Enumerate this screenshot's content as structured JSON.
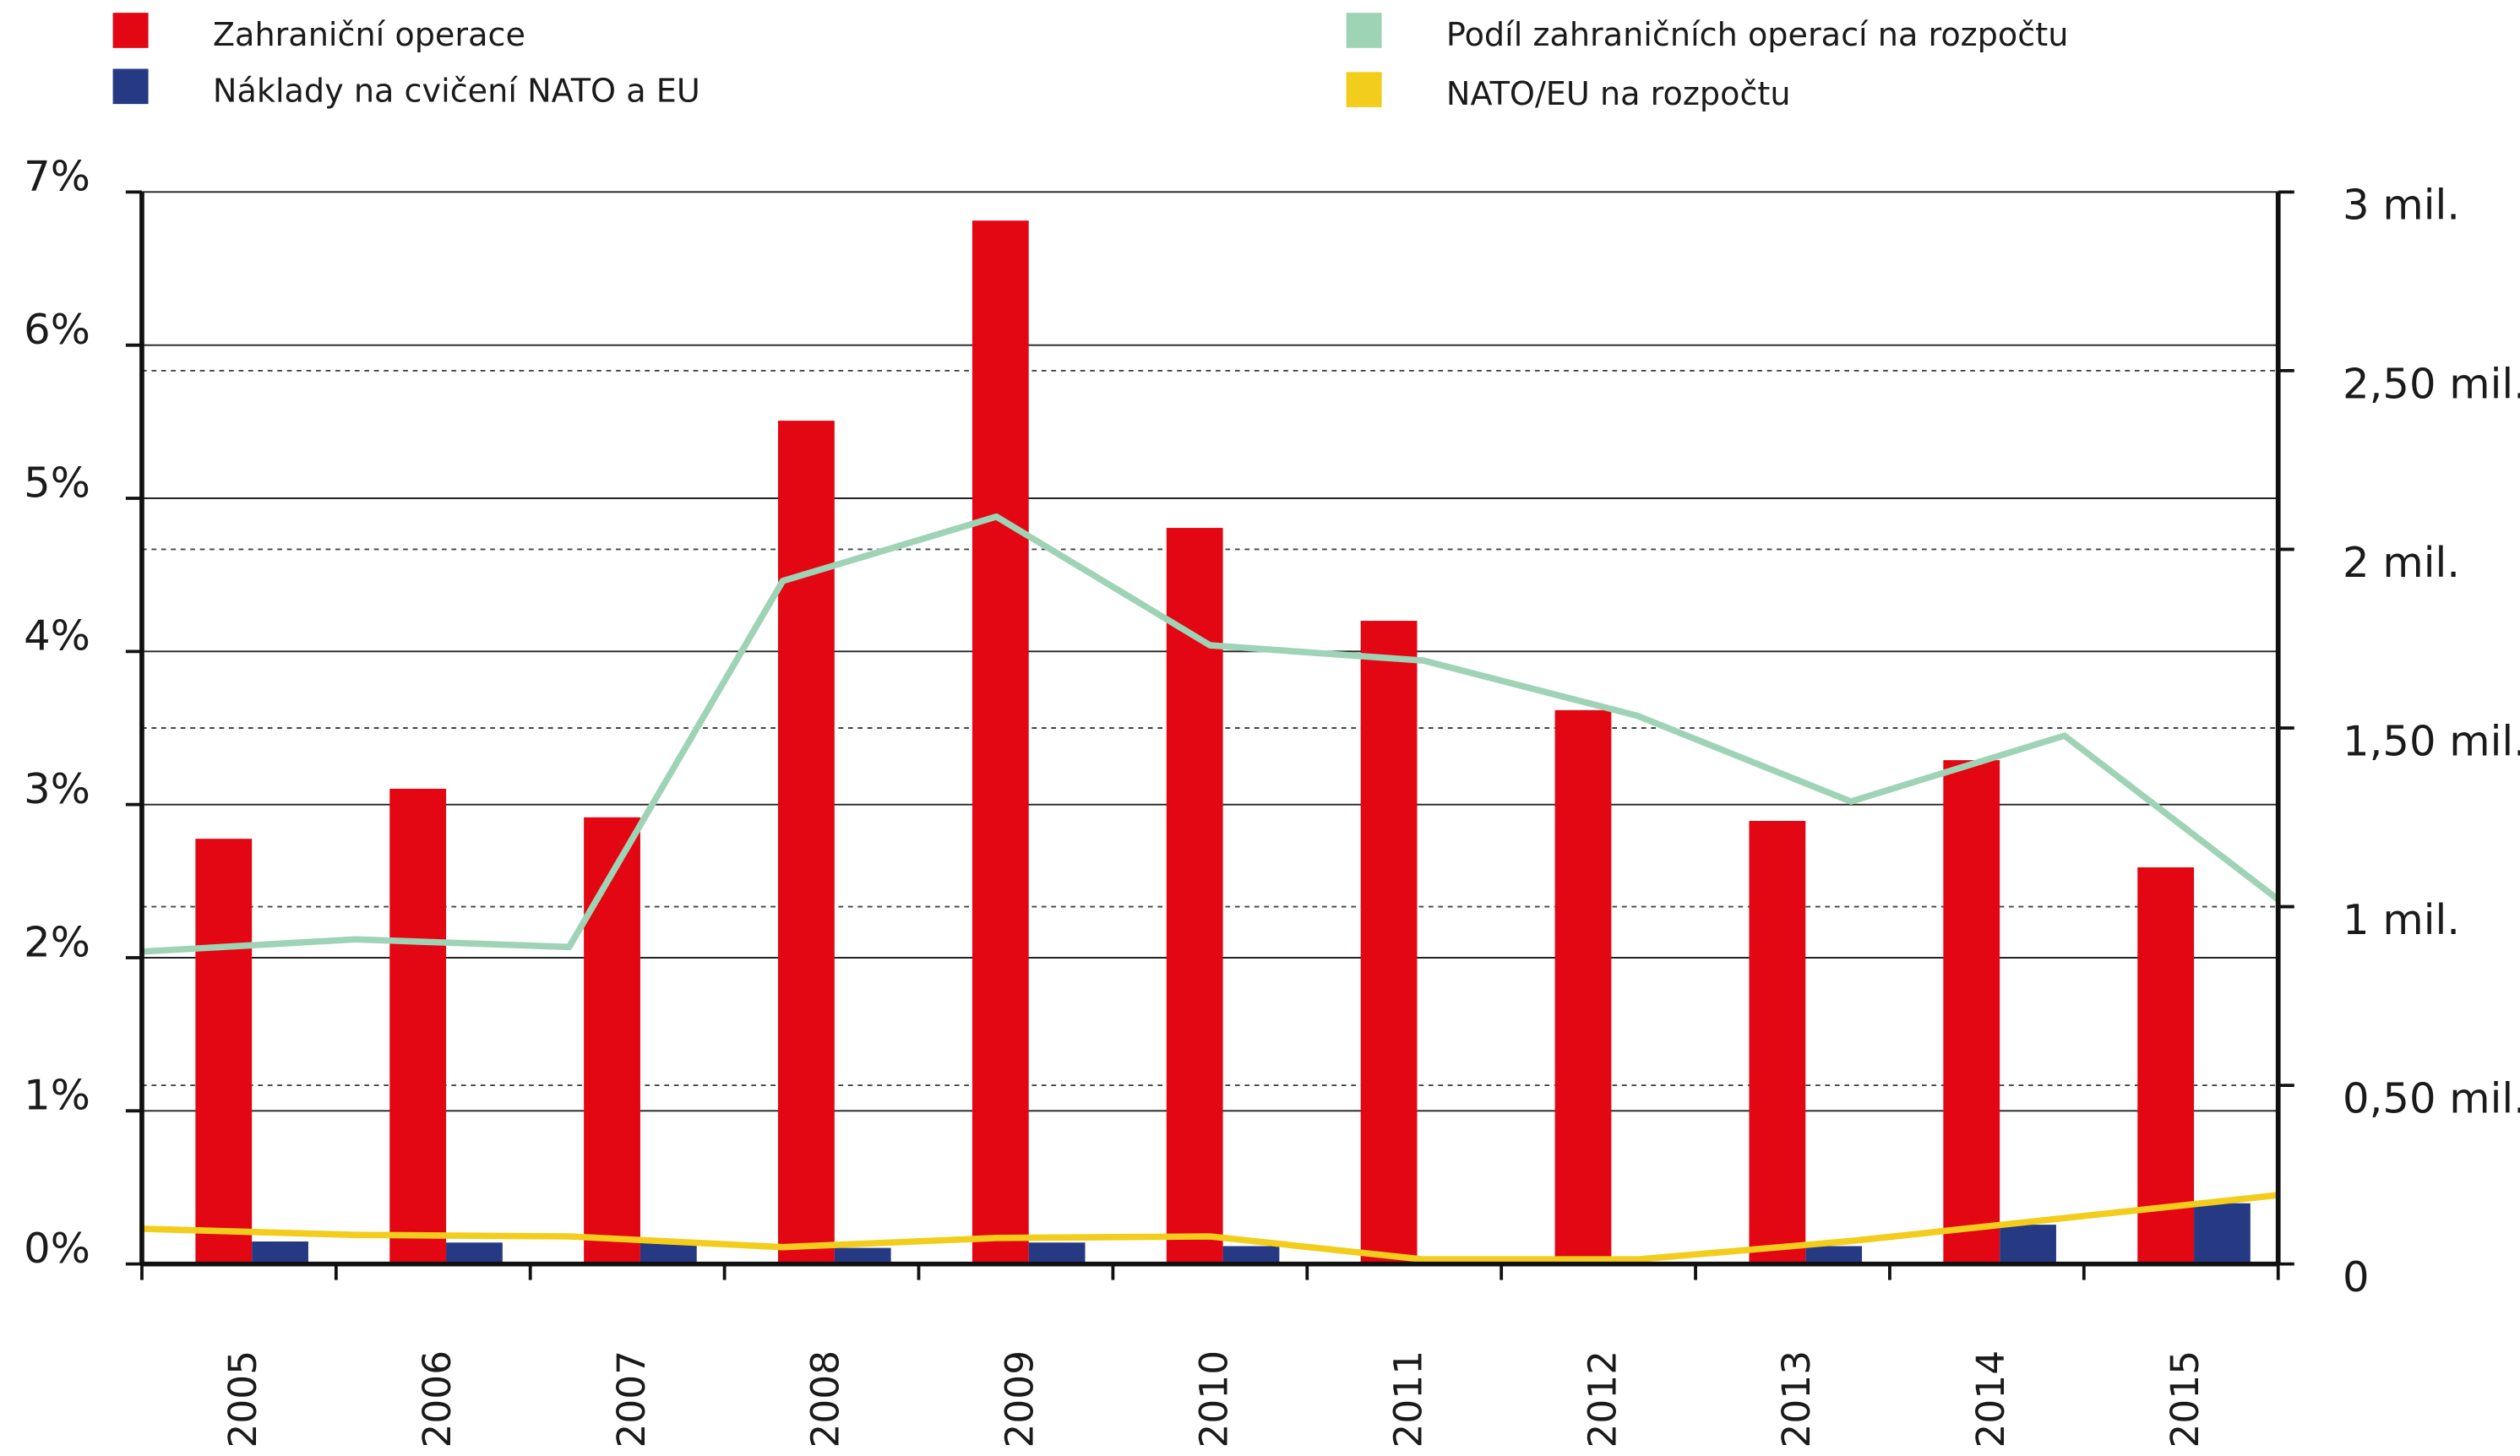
{
  "chart_data": {
    "type": "bar",
    "categories": [
      "2005",
      "2006",
      "2007",
      "2008",
      "2009",
      "2010",
      "2011",
      "2012",
      "2013",
      "2014",
      "2015"
    ],
    "series": [
      {
        "name": "Zahraniční operace",
        "type": "bar",
        "axis": "y2",
        "color": "#e30613",
        "values": [
          1.19,
          1.33,
          1.25,
          2.36,
          2.92,
          2.06,
          1.8,
          1.55,
          1.24,
          1.41,
          1.11
        ]
      },
      {
        "name": "Náklady na cvičení NATO a EU",
        "type": "bar",
        "axis": "y2",
        "color": "#263a84",
        "values": [
          0.063,
          0.06,
          0.06,
          0.045,
          0.06,
          0.05,
          0,
          0.005,
          0.05,
          0.11,
          0.17
        ]
      },
      {
        "name": "Podíl zahraničních operací na rozpočtu",
        "type": "line",
        "color": "#9fd3b5",
        "values": [
          2.04,
          2.12,
          2.07,
          4.46,
          4.88,
          4.04,
          3.94,
          3.58,
          3.02,
          3.45,
          2.38
        ]
      },
      {
        "name": "NATO/EU na rozpočtu",
        "type": "line",
        "color": "#f2cd1c",
        "values": [
          0.23,
          0.19,
          0.18,
          0.11,
          0.17,
          0.18,
          0.03,
          0.03,
          0.15,
          0.3,
          0.45
        ]
      }
    ],
    "ylim": [
      0,
      7
    ],
    "yticks": [
      {
        "value": 0,
        "label": "0%"
      },
      {
        "value": 1,
        "label": "1%"
      },
      {
        "value": 2,
        "label": "2%"
      },
      {
        "value": 3,
        "label": "3%"
      },
      {
        "value": 4,
        "label": "4%"
      },
      {
        "value": 5,
        "label": "5%"
      },
      {
        "value": 6,
        "label": "6%"
      },
      {
        "value": 7,
        "label": "7%"
      }
    ],
    "y2lim": [
      0,
      3
    ],
    "y2ticks": [
      {
        "value": 0,
        "label": "0"
      },
      {
        "value": 0.5,
        "label": "0,50 mil."
      },
      {
        "value": 1,
        "label": "1 mil."
      },
      {
        "value": 1.5,
        "label": "1,50 mil."
      },
      {
        "value": 2,
        "label": "2 mil."
      },
      {
        "value": 2.5,
        "label": "2,50 mil."
      },
      {
        "value": 3,
        "label": "3 mil."
      }
    ],
    "grid": true,
    "legend": "top"
  }
}
